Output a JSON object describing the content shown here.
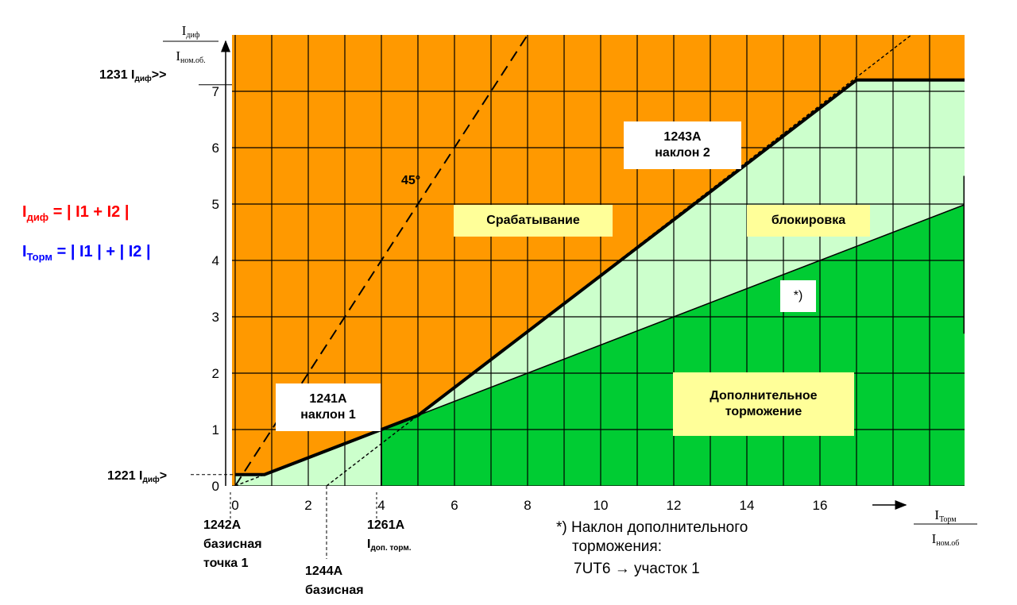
{
  "chart_data": {
    "type": "area",
    "xlim": [
      -0.3,
      20
    ],
    "ylim": [
      0,
      7.4
    ],
    "x_ticks": [
      0,
      2,
      4,
      6,
      8,
      10,
      12,
      14,
      16
    ],
    "y_ticks": [
      0,
      1,
      2,
      3,
      4,
      5,
      6,
      7
    ],
    "grid": true,
    "trip_characteristic": {
      "x": [
        0,
        0.8,
        4,
        5,
        17,
        20
      ],
      "y": [
        0.2,
        0.2,
        1.0,
        1.25,
        7.2,
        7.2
      ]
    },
    "add_restraint_line": {
      "x": [
        4,
        20
      ],
      "y": [
        1.0,
        5.0
      ]
    },
    "add_restraint_region": {
      "x_start": 4
    },
    "slope2_extension": {
      "x": [
        2.5,
        20
      ],
      "y": [
        0,
        8.75
      ]
    },
    "slope1_extension": {
      "x": [
        0,
        4
      ],
      "y": [
        0,
        1
      ]
    },
    "line_45deg": {
      "x": [
        0,
        8
      ],
      "y": [
        0,
        8
      ]
    },
    "idiff_hi_level": 7.2,
    "idiff_lo_level": 0.2,
    "base_point_2": 2.5,
    "colors": {
      "trip": "#ff9900",
      "block": "#ccffcc",
      "add_restraint": "#00cc33",
      "label_bg": "#ffff99"
    },
    "regions": {
      "trip": "Срабатывание",
      "block": "блокировка",
      "add_restraint": [
        "Дополнительное",
        "торможение"
      ]
    },
    "annotations": {
      "deg45": "45°",
      "slope1": [
        "1241A",
        "наклон 1"
      ],
      "slope2": [
        "1243A",
        "наклон 2"
      ],
      "star": "*)",
      "p1231": "1231",
      "p1221": "1221",
      "gt_hi": ">>",
      "gt_lo": ">",
      "p1242": [
        "1242A",
        "базисная",
        "точка 1"
      ],
      "p1261": "1261A",
      "p1244": [
        "1244A",
        "базисная"
      ]
    },
    "axis": {
      "y_num": "I",
      "y_num_sub": "диф",
      "y_den": "I",
      "y_den_sub": "ном.об.",
      "x_num": "I",
      "x_num_sub": "Торм",
      "x_den": "I",
      "x_den_sub": "ном.об",
      "idiff": "I",
      "idiff_sub": "диф",
      "iadd": "I",
      "iadd_sub": "доп. торм."
    }
  },
  "formulas": {
    "idiff_label": "I",
    "idiff_sub": "диф",
    "idiff_expr": "= | I1 + I2 |",
    "irest_label": "I",
    "irest_sub": "Торм",
    "irest_expr": "= | I1 | + | I2 |"
  },
  "footnote": {
    "line1": "*) Наклон дополнительного",
    "line2": "торможения:",
    "line3": "7UT6 → участок 1"
  }
}
